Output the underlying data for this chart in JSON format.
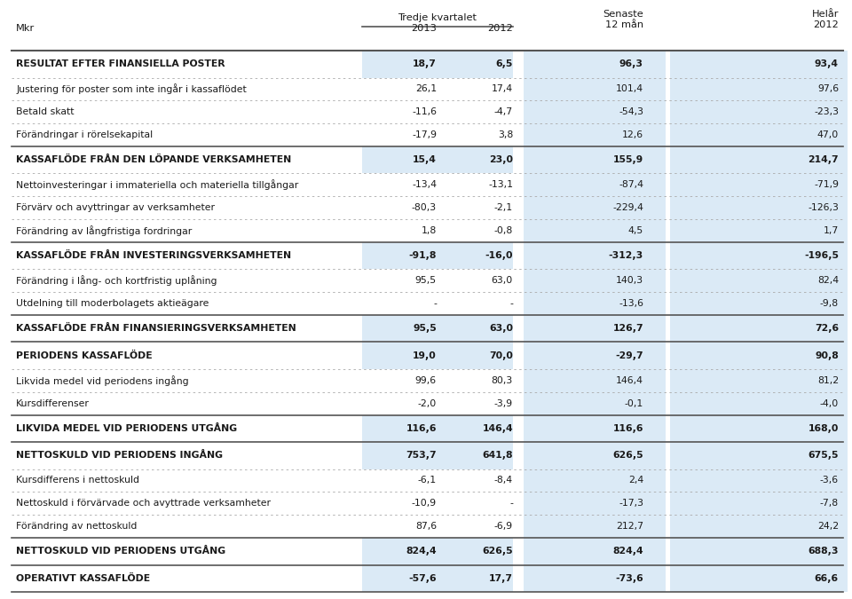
{
  "col_header_group": "Tredje kvartalet",
  "rows": [
    {
      "label": "RESULTAT EFTER FINANSIELLA POSTER",
      "vals": [
        "18,7",
        "6,5",
        "96,3",
        "93,4"
      ],
      "bold": true,
      "extra_top": true
    },
    {
      "label": "Justering för poster som inte ingår i kassaflödet",
      "vals": [
        "26,1",
        "17,4",
        "101,4",
        "97,6"
      ],
      "bold": false,
      "extra_top": false
    },
    {
      "label": "Betald skatt",
      "vals": [
        "-11,6",
        "-4,7",
        "-54,3",
        "-23,3"
      ],
      "bold": false,
      "extra_top": false
    },
    {
      "label": "Förändringar i rörelsekapital",
      "vals": [
        "-17,9",
        "3,8",
        "12,6",
        "47,0"
      ],
      "bold": false,
      "extra_top": false
    },
    {
      "label": "KASSAFLÖDE FRÅN DEN LÖPANDE VERKSAMHETEN",
      "vals": [
        "15,4",
        "23,0",
        "155,9",
        "214,7"
      ],
      "bold": true,
      "extra_top": true
    },
    {
      "label": "Nettoinvesteringar i immateriella och materiella tillgångar",
      "vals": [
        "-13,4",
        "-13,1",
        "-87,4",
        "-71,9"
      ],
      "bold": false,
      "extra_top": false
    },
    {
      "label": "Förvärv och avyttringar av verksamheter",
      "vals": [
        "-80,3",
        "-2,1",
        "-229,4",
        "-126,3"
      ],
      "bold": false,
      "extra_top": false
    },
    {
      "label": "Förändring av långfristiga fordringar",
      "vals": [
        "1,8",
        "-0,8",
        "4,5",
        "1,7"
      ],
      "bold": false,
      "extra_top": false
    },
    {
      "label": "KASSAFLÖDE FRÅN INVESTERINGSVERKSAMHETEN",
      "vals": [
        "-91,8",
        "-16,0",
        "-312,3",
        "-196,5"
      ],
      "bold": true,
      "extra_top": true
    },
    {
      "label": "Förändring i lång- och kortfristig uplåning",
      "vals": [
        "95,5",
        "63,0",
        "140,3",
        "82,4"
      ],
      "bold": false,
      "extra_top": false
    },
    {
      "label": "Utdelning till moderbolagets aktieägare",
      "vals": [
        "-",
        "-",
        "-13,6",
        "-9,8"
      ],
      "bold": false,
      "extra_top": false
    },
    {
      "label": "KASSAFLÖDE FRÅN FINANSIERINGSVERKSAMHETEN",
      "vals": [
        "95,5",
        "63,0",
        "126,7",
        "72,6"
      ],
      "bold": true,
      "extra_top": true
    },
    {
      "label": "PERIODENS KASSAFLÖDE",
      "vals": [
        "19,0",
        "70,0",
        "-29,7",
        "90,8"
      ],
      "bold": true,
      "extra_top": true
    },
    {
      "label": "Likvida medel vid periodens ingång",
      "vals": [
        "99,6",
        "80,3",
        "146,4",
        "81,2"
      ],
      "bold": false,
      "extra_top": false
    },
    {
      "label": "Kursdifferenser",
      "vals": [
        "-2,0",
        "-3,9",
        "-0,1",
        "-4,0"
      ],
      "bold": false,
      "extra_top": false
    },
    {
      "label": "LIKVIDA MEDEL VID PERIODENS UTGÅNG",
      "vals": [
        "116,6",
        "146,4",
        "116,6",
        "168,0"
      ],
      "bold": true,
      "extra_top": true
    },
    {
      "label": "NETTOSKULD VID PERIODENS INGÅNG",
      "vals": [
        "753,7",
        "641,8",
        "626,5",
        "675,5"
      ],
      "bold": true,
      "extra_top": true
    },
    {
      "label": "Kursdifferens i nettoskuld",
      "vals": [
        "-6,1",
        "-8,4",
        "2,4",
        "-3,6"
      ],
      "bold": false,
      "extra_top": false
    },
    {
      "label": "Nettoskuld i förvärvade och avyttrade verksamheter",
      "vals": [
        "-10,9",
        "-",
        "-17,3",
        "-7,8"
      ],
      "bold": false,
      "extra_top": false
    },
    {
      "label": "Förändring av nettoskuld",
      "vals": [
        "87,6",
        "-6,9",
        "212,7",
        "24,2"
      ],
      "bold": false,
      "extra_top": false
    },
    {
      "label": "NETTOSKULD VID PERIODENS UTGÅNG",
      "vals": [
        "824,4",
        "626,5",
        "824,4",
        "688,3"
      ],
      "bold": true,
      "extra_top": true
    },
    {
      "label": "OPERATIVT KASSAFLÖDE",
      "vals": [
        "-57,6",
        "17,7",
        "-73,6",
        "66,6"
      ],
      "bold": true,
      "extra_top": true
    }
  ],
  "bg_color": "#ffffff",
  "highlight_color": "#dbeaf6",
  "text_color": "#1a1a1a",
  "dot_color": "#aaaaaa",
  "line_color": "#555555",
  "label_fontsize": 7.8,
  "val_fontsize": 7.8,
  "header_fontsize": 8.2
}
